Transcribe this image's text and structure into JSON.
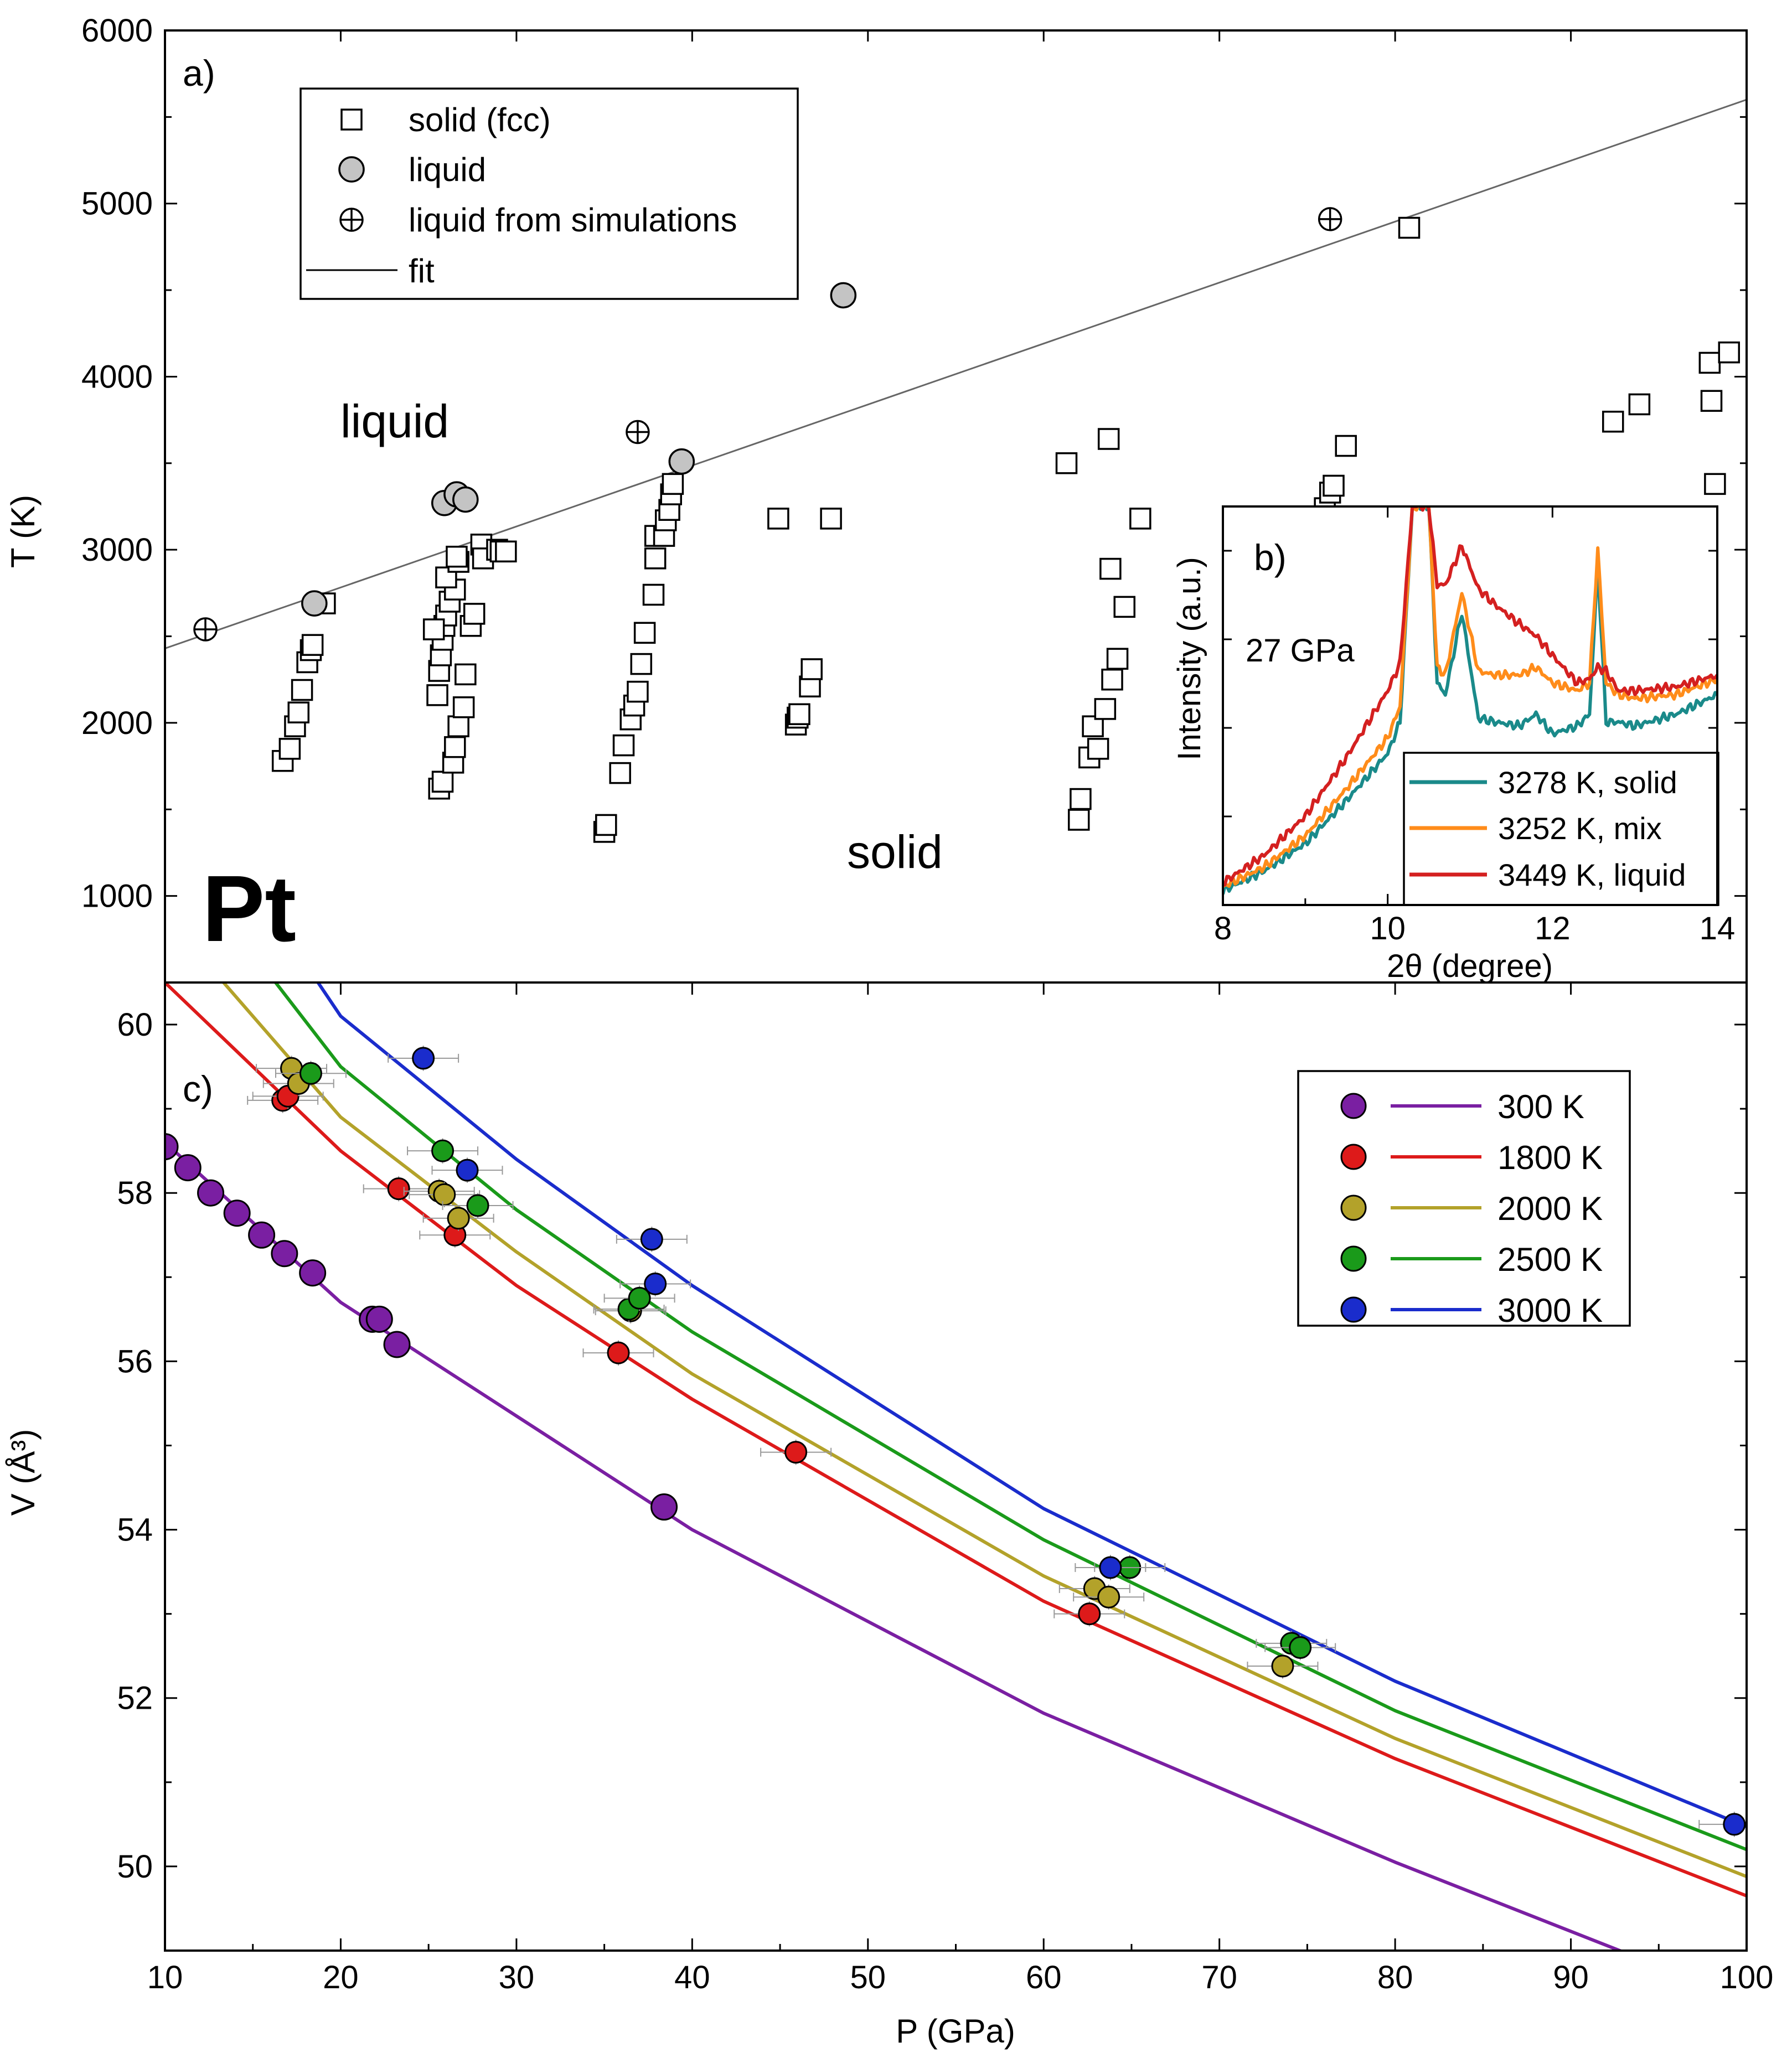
{
  "chart_data": [
    {
      "panel": "a)",
      "type": "scatter",
      "element": "Pt",
      "xlabel": "",
      "ylabel": "T (K)",
      "xlim": [
        10,
        100
      ],
      "ylim": [
        500,
        6000
      ],
      "y_ticks": [
        "1000",
        "2000",
        "3000",
        "4000",
        "5000",
        "6000"
      ],
      "region_labels": [
        "liquid",
        "solid"
      ],
      "legend": {
        "position": "top-left",
        "entries": [
          {
            "marker": "square-open",
            "label": "solid (fcc)"
          },
          {
            "marker": "circle-gray",
            "label": "liquid"
          },
          {
            "marker": "circle-cross",
            "label": "liquid from simulations"
          },
          {
            "marker": "line",
            "label": "fit"
          }
        ]
      },
      "fit": {
        "x": [
          10,
          100
        ],
        "y": [
          2430,
          5600
        ]
      },
      "series": [
        {
          "name": "solid (fcc)",
          "points": [
            [
              16.7,
              1780
            ],
            [
              17.1,
              1850
            ],
            [
              17.4,
              1980
            ],
            [
              17.6,
              2060
            ],
            [
              17.8,
              2190
            ],
            [
              18.1,
              2350
            ],
            [
              18.3,
              2420
            ],
            [
              18.4,
              2450
            ],
            [
              19.1,
              2690
            ],
            [
              25.6,
              1620
            ],
            [
              25.8,
              1660
            ],
            [
              26.4,
              1770
            ],
            [
              26.5,
              1860
            ],
            [
              26.7,
              1980
            ],
            [
              27.0,
              2090
            ],
            [
              27.1,
              2280
            ],
            [
              27.4,
              2560
            ],
            [
              27.6,
              2630
            ],
            [
              25.5,
              2160
            ],
            [
              25.6,
              2300
            ],
            [
              25.7,
              2390
            ],
            [
              25.8,
              2480
            ],
            [
              25.9,
              2560
            ],
            [
              26.0,
              2620
            ],
            [
              25.3,
              2540
            ],
            [
              26.2,
              2700
            ],
            [
              26.5,
              2770
            ],
            [
              26.0,
              2840
            ],
            [
              26.7,
              2930
            ],
            [
              26.6,
              2960
            ],
            [
              28.0,
              3030
            ],
            [
              28.1,
              2950
            ],
            [
              28.9,
              3000
            ],
            [
              29.1,
              2990
            ],
            [
              29.4,
              2990
            ],
            [
              35.0,
              1370
            ],
            [
              35.1,
              1410
            ],
            [
              35.9,
              1710
            ],
            [
              36.1,
              1870
            ],
            [
              36.5,
              2020
            ],
            [
              36.7,
              2100
            ],
            [
              36.9,
              2180
            ],
            [
              37.1,
              2340
            ],
            [
              37.3,
              2520
            ],
            [
              37.8,
              2740
            ],
            [
              37.9,
              2950
            ],
            [
              37.9,
              3080
            ],
            [
              38.4,
              3080
            ],
            [
              38.5,
              3170
            ],
            [
              38.7,
              3230
            ],
            [
              38.8,
              3320
            ],
            [
              38.9,
              3380
            ],
            [
              44.9,
              3180
            ],
            [
              47.9,
              3180
            ],
            [
              45.9,
              1990
            ],
            [
              46.0,
              2030
            ],
            [
              46.1,
              2050
            ],
            [
              46.7,
              2210
            ],
            [
              46.8,
              2310
            ],
            [
              61.3,
              3500
            ],
            [
              63.7,
              3640
            ],
            [
              65.5,
              3180
            ],
            [
              63.8,
              2890
            ],
            [
              64.6,
              2670
            ],
            [
              62.0,
              1440
            ],
            [
              62.1,
              1560
            ],
            [
              62.6,
              1800
            ],
            [
              62.8,
              1980
            ],
            [
              63.1,
              1850
            ],
            [
              63.5,
              2080
            ],
            [
              63.9,
              2250
            ],
            [
              64.2,
              2370
            ],
            [
              80.8,
              4860
            ],
            [
              76.0,
              3240
            ],
            [
              76.3,
              3330
            ],
            [
              76.5,
              3370
            ],
            [
              77.2,
              3600
            ],
            [
              92.4,
              3740
            ],
            [
              93.9,
              3840
            ],
            [
              97.9,
              4080
            ],
            [
              98.0,
              3860
            ],
            [
              98.2,
              3380
            ],
            [
              99.0,
              4140
            ]
          ]
        },
        {
          "name": "liquid",
          "points": [
            [
              18.5,
              2690
            ],
            [
              25.9,
              3270
            ],
            [
              26.6,
              3320
            ],
            [
              27.1,
              3290
            ],
            [
              39.4,
              3510
            ],
            [
              48.6,
              4470
            ]
          ]
        },
        {
          "name": "liquid from simulations",
          "points": [
            [
              12.3,
              2540
            ],
            [
              36.9,
              3680
            ],
            [
              76.3,
              4910
            ]
          ]
        }
      ]
    },
    {
      "panel": "b)",
      "type": "line",
      "pressure_label": "27 GPa",
      "xlabel": "2θ (degree)",
      "ylabel": "Intensity (a.u.)",
      "xlim": [
        8,
        14
      ],
      "x_ticks": [
        "8",
        "10",
        "12",
        "14"
      ],
      "legend": {
        "position": "bottom-right",
        "entries": [
          {
            "label": "3278 K, solid",
            "color": "#1a8a8a"
          },
          {
            "label": "3252 K, mix",
            "color": "#ff8c1a"
          },
          {
            "label": "3449 K, liquid",
            "color": "#d42020"
          }
        ]
      },
      "series": [
        {
          "name": "3278 K, solid",
          "x": [
            8.0,
            8.5,
            9.0,
            9.5,
            10.0,
            10.15,
            10.3,
            10.5,
            10.6,
            10.7,
            10.9,
            11.1,
            11.3,
            11.6,
            11.8,
            12.0,
            12.3,
            12.45,
            12.55,
            12.65,
            12.8,
            13.0,
            13.5,
            14.0
          ],
          "y": [
            0.02,
            0.07,
            0.14,
            0.25,
            0.37,
            0.45,
            1.0,
            1.0,
            0.55,
            0.52,
            0.73,
            0.46,
            0.45,
            0.44,
            0.47,
            0.42,
            0.44,
            0.47,
            0.85,
            0.45,
            0.45,
            0.44,
            0.47,
            0.52
          ]
        },
        {
          "name": "3252 K, mix",
          "x": [
            8.0,
            8.5,
            9.0,
            9.5,
            10.0,
            10.15,
            10.3,
            10.5,
            10.6,
            10.7,
            10.9,
            11.1,
            11.3,
            11.6,
            11.8,
            12.0,
            12.3,
            12.45,
            12.55,
            12.65,
            12.8,
            13.0,
            13.5,
            14.0
          ],
          "y": [
            0.03,
            0.08,
            0.16,
            0.28,
            0.41,
            0.49,
            1.0,
            1.0,
            0.59,
            0.57,
            0.78,
            0.58,
            0.57,
            0.57,
            0.59,
            0.55,
            0.53,
            0.55,
            0.89,
            0.55,
            0.52,
            0.51,
            0.52,
            0.56
          ]
        },
        {
          "name": "3449 K, liquid",
          "x": [
            8.0,
            8.5,
            9.0,
            9.5,
            10.0,
            10.15,
            10.3,
            10.5,
            10.6,
            10.7,
            10.9,
            11.1,
            11.3,
            11.6,
            11.8,
            12.0,
            12.3,
            12.45,
            12.55,
            12.65,
            12.8,
            13.0,
            13.5,
            14.0
          ],
          "y": [
            0.04,
            0.11,
            0.21,
            0.36,
            0.53,
            0.6,
            1.0,
            1.0,
            0.8,
            0.8,
            0.9,
            0.79,
            0.75,
            0.7,
            0.67,
            0.62,
            0.55,
            0.56,
            0.59,
            0.58,
            0.53,
            0.53,
            0.54,
            0.57
          ]
        }
      ]
    },
    {
      "panel": "c)",
      "type": "line",
      "xlabel": "P (GPa)",
      "ylabel": "V (Å³)",
      "xlim": [
        10,
        100
      ],
      "ylim": [
        49,
        60.5
      ],
      "x_ticks": [
        "10",
        "20",
        "30",
        "40",
        "50",
        "60",
        "70",
        "80",
        "90",
        "100"
      ],
      "y_ticks": [
        "50",
        "52",
        "54",
        "56",
        "58",
        "60"
      ],
      "legend": {
        "position": "top-right",
        "entries": [
          {
            "label": "300 K",
            "color": "#7a1fa2"
          },
          {
            "label": "1800 K",
            "color": "#dd1a1a"
          },
          {
            "label": "2000 K",
            "color": "#b3a22a"
          },
          {
            "label": "2500 K",
            "color": "#1a9a1a"
          },
          {
            "label": "3000 K",
            "color": "#1a2ccc"
          }
        ]
      },
      "series": [
        {
          "name": "300 K",
          "fit": [
            [
              10,
              58.6
            ],
            [
              20,
              56.7
            ],
            [
              30,
              55.35
            ],
            [
              40,
              54.0
            ],
            [
              60,
              51.82
            ],
            [
              80,
              50.05
            ],
            [
              94,
              48.9
            ]
          ],
          "points": [
            [
              10.0,
              58.55
            ],
            [
              11.3,
              58.3
            ],
            [
              12.6,
              58.0
            ],
            [
              14.1,
              57.76
            ],
            [
              15.5,
              57.5
            ],
            [
              16.8,
              57.28
            ],
            [
              18.4,
              57.05
            ],
            [
              21.8,
              56.5
            ],
            [
              22.2,
              56.5
            ],
            [
              23.2,
              56.2
            ],
            [
              38.4,
              54.27
            ]
          ]
        },
        {
          "name": "1800 K",
          "fit": [
            [
              10,
              60.5
            ],
            [
              20,
              58.5
            ],
            [
              30,
              56.9
            ],
            [
              40,
              55.55
            ],
            [
              60,
              53.15
            ],
            [
              80,
              51.28
            ],
            [
              100,
              49.65
            ]
          ],
          "points": [
            [
              16.7,
              59.1
            ],
            [
              17.0,
              59.15
            ],
            [
              23.3,
              58.05
            ],
            [
              26.5,
              57.5
            ],
            [
              35.8,
              56.1
            ],
            [
              45.9,
              54.92
            ],
            [
              62.6,
              53.0
            ]
          ]
        },
        {
          "name": "2000 K",
          "fit": [
            [
              10,
              61.3
            ],
            [
              20,
              58.9
            ],
            [
              30,
              57.3
            ],
            [
              40,
              55.85
            ],
            [
              60,
              53.45
            ],
            [
              80,
              51.52
            ],
            [
              100,
              49.88
            ]
          ],
          "points": [
            [
              17.2,
              59.48
            ],
            [
              17.6,
              59.3
            ],
            [
              25.6,
              58.02
            ],
            [
              25.9,
              57.98
            ],
            [
              26.7,
              57.7
            ],
            [
              36.5,
              56.6
            ],
            [
              62.9,
              53.3
            ],
            [
              63.7,
              53.2
            ],
            [
              73.6,
              52.38
            ]
          ]
        },
        {
          "name": "2500 K",
          "fit": [
            [
              10,
              62.2
            ],
            [
              20,
              59.5
            ],
            [
              30,
              57.8
            ],
            [
              40,
              56.35
            ],
            [
              60,
              53.88
            ],
            [
              80,
              51.85
            ],
            [
              100,
              50.2
            ]
          ],
          "points": [
            [
              18.3,
              59.42
            ],
            [
              25.8,
              58.5
            ],
            [
              27.8,
              57.85
            ],
            [
              36.4,
              56.62
            ],
            [
              37.0,
              56.75
            ],
            [
              64.9,
              53.55
            ],
            [
              74.1,
              52.65
            ],
            [
              74.6,
              52.6
            ]
          ]
        },
        {
          "name": "3000 K",
          "fit": [
            [
              10,
              63.2
            ],
            [
              20,
              60.1
            ],
            [
              30,
              58.4
            ],
            [
              40,
              56.9
            ],
            [
              60,
              54.25
            ],
            [
              80,
              52.2
            ],
            [
              100,
              50.47
            ]
          ],
          "points": [
            [
              24.7,
              59.6
            ],
            [
              27.2,
              58.27
            ],
            [
              37.7,
              57.45
            ],
            [
              37.9,
              56.92
            ],
            [
              63.8,
              53.55
            ],
            [
              99.3,
              50.5
            ]
          ]
        }
      ]
    }
  ]
}
